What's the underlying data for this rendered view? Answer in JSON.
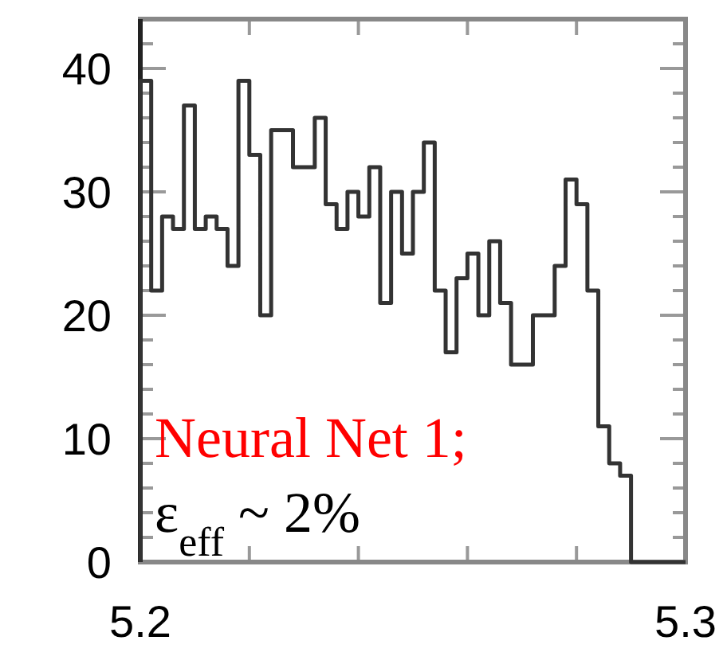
{
  "chart_data": {
    "type": "histogram",
    "bins": [
      5.2,
      5.202,
      5.204,
      5.206,
      5.208,
      5.21,
      5.212,
      5.214,
      5.216,
      5.218,
      5.22,
      5.222,
      5.224,
      5.226,
      5.228,
      5.23,
      5.232,
      5.234,
      5.236,
      5.238,
      5.24,
      5.242,
      5.244,
      5.246,
      5.248,
      5.25,
      5.252,
      5.254,
      5.256,
      5.258,
      5.26,
      5.262,
      5.264,
      5.266,
      5.268,
      5.27,
      5.272,
      5.274,
      5.276,
      5.278,
      5.28,
      5.282,
      5.284,
      5.286,
      5.288,
      5.29,
      5.292,
      5.294,
      5.296,
      5.298,
      5.3
    ],
    "values": [
      39,
      22,
      28,
      27,
      37,
      27,
      28,
      27,
      24,
      39,
      33,
      20,
      35,
      35,
      32,
      32,
      36,
      29,
      27,
      30,
      28,
      32,
      21,
      30,
      25,
      30,
      34,
      22,
      17,
      23,
      25,
      20,
      26,
      21,
      16,
      16,
      20,
      20,
      24,
      31,
      29,
      22,
      11,
      8,
      7,
      0,
      0,
      0,
      0,
      0
    ],
    "color": "#333333",
    "xlim": [
      5.2,
      5.3
    ],
    "xticks": [
      5.2,
      {
        "value": 5.22,
        "label": null
      },
      {
        "value": 5.24,
        "label": null
      },
      {
        "value": 5.26,
        "label": null
      },
      {
        "value": 5.28,
        "label": null
      },
      5.3
    ],
    "ylim": [
      0,
      44
    ],
    "yticks": [
      0,
      {
        "value": 2,
        "label": null
      },
      {
        "value": 4,
        "label": null
      },
      {
        "value": 6,
        "label": null
      },
      {
        "value": 8,
        "label": null
      },
      10,
      {
        "value": 12,
        "label": null
      },
      {
        "value": 14,
        "label": null
      },
      {
        "value": 16,
        "label": null
      },
      {
        "value": 18,
        "label": null
      },
      20,
      {
        "value": 22,
        "label": null
      },
      {
        "value": 24,
        "label": null
      },
      {
        "value": 26,
        "label": null
      },
      {
        "value": 28,
        "label": null
      },
      30,
      {
        "value": 32,
        "label": null
      },
      {
        "value": 34,
        "label": null
      },
      {
        "value": 36,
        "label": null
      },
      {
        "value": 38,
        "label": null
      },
      40,
      {
        "value": 42,
        "label": null
      }
    ],
    "annotations": [
      "Neural Net 1;",
      "ε$_{eff}$ ~ 2%"
    ]
  }
}
